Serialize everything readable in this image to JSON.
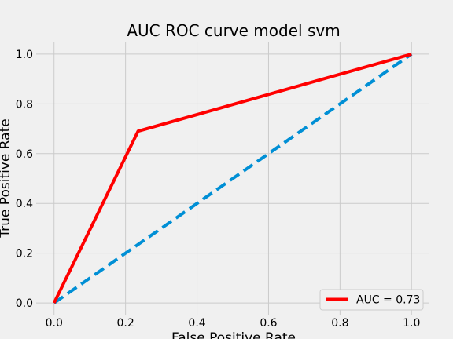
{
  "chart_data": {
    "type": "line",
    "title": "AUC ROC curve model svm",
    "xlabel": "False Positive Rate",
    "ylabel": "True Positive Rate",
    "xlim": [
      -0.05,
      1.05
    ],
    "ylim": [
      -0.05,
      1.05
    ],
    "xticks": [
      0.0,
      0.2,
      0.4,
      0.6,
      0.8,
      1.0
    ],
    "yticks": [
      0.0,
      0.2,
      0.4,
      0.6,
      0.8,
      1.0
    ],
    "xtick_labels": [
      "0.0",
      "0.2",
      "0.4",
      "0.6",
      "0.8",
      "1.0"
    ],
    "ytick_labels": [
      "0.0",
      "0.2",
      "0.4",
      "0.6",
      "0.8",
      "1.0"
    ],
    "grid": true,
    "legend_position": "lower-right",
    "series": [
      {
        "name": "AUC = 0.73",
        "color": "#ff0000",
        "style": "solid",
        "x": [
          0.0,
          0.235,
          1.0
        ],
        "y": [
          0.0,
          0.69,
          1.0
        ]
      },
      {
        "color": "#008fd5",
        "style": "dashed",
        "x": [
          0.0,
          1.0
        ],
        "y": [
          0.0,
          1.0
        ]
      }
    ],
    "colors": {
      "background": "#f0f0f0",
      "grid": "#cbcbcb"
    }
  }
}
